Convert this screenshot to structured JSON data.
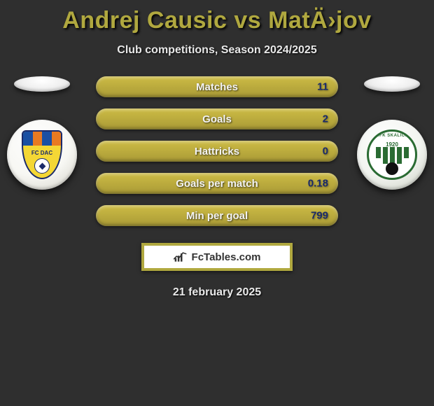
{
  "title": "Andrej Causic vs MatÄ›jov",
  "subtitle": "Club competitions, Season 2024/2025",
  "date_line": "21 february 2025",
  "brand": {
    "text": "FcTables.com"
  },
  "crest_left": {
    "text": "FC DAC",
    "rim_color": "#1a2a6a",
    "fill_color": "#f4d735",
    "stripe_colors": [
      "#1a4fa3",
      "#e87a22",
      "#1a4fa3",
      "#e87a22"
    ]
  },
  "crest_right": {
    "arc_text": "MFK SKALICA",
    "year": "1920",
    "color": "#2a6b33"
  },
  "pill_gradient": {
    "from": "#cdbc45",
    "to": "#a99a36"
  },
  "accent_color": "#b0a83f",
  "value_color": "#1a2a6a",
  "background_color": "#2f2f2f",
  "stats": [
    {
      "label": "Matches",
      "value": "11"
    },
    {
      "label": "Goals",
      "value": "2"
    },
    {
      "label": "Hattricks",
      "value": "0"
    },
    {
      "label": "Goals per match",
      "value": "0.18"
    },
    {
      "label": "Min per goal",
      "value": "799"
    }
  ]
}
